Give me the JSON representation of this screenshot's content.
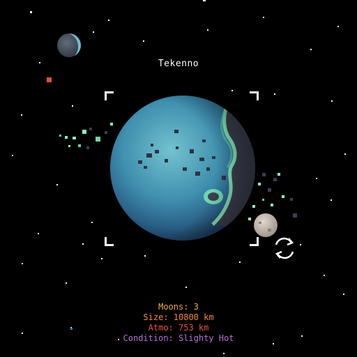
{
  "planet": {
    "name": "Tekenno"
  },
  "stats": {
    "moons": "Moons: 3",
    "size": "Size: 10800 km",
    "atmo": "Atmo: 753 km",
    "condition": "Condition: Slighty Hot"
  },
  "colors": {
    "background": "#000000",
    "moons_text": "#f2a93b",
    "size_text": "#ee8a3a",
    "atmo_text": "#e2553e",
    "condition_text": "#b46fd9",
    "planet_ocean": "#4f9fb5",
    "planet_land": "#3b3f4e",
    "planet_glow": "#8ff0c0",
    "moon_grey": "#c9bdb3"
  },
  "icons": {
    "regenerate": "refresh-icon"
  }
}
